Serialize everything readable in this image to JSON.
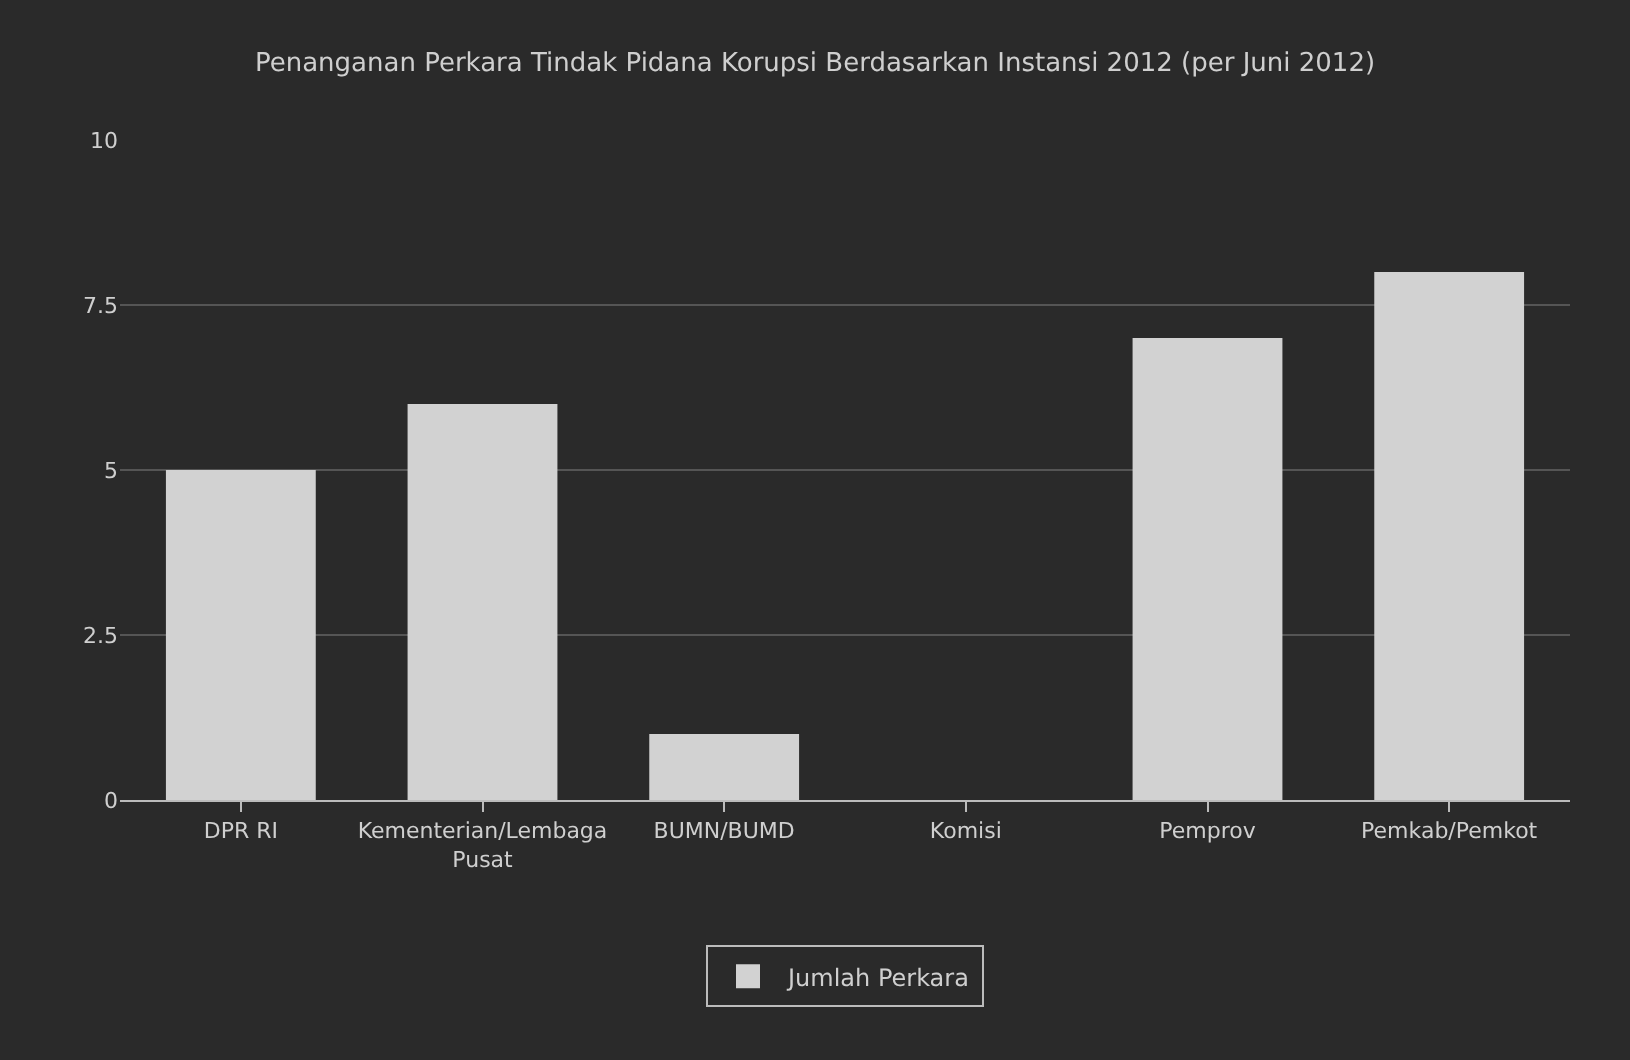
{
  "chart_data": {
    "type": "bar",
    "title": "Penanganan Perkara Tindak Pidana Korupsi Berdasarkan Instansi 2012 (per Juni 2012)",
    "categories": [
      "DPR RI",
      "Kementerian/Lembaga Pusat",
      "BUMN/BUMD",
      "Komisi",
      "Pemprov",
      "Pemkab/Pemkot"
    ],
    "series": [
      {
        "name": "Jumlah Perkara",
        "color": "#d2d2d2",
        "values": [
          5,
          6,
          1,
          0,
          7,
          8
        ]
      }
    ],
    "ylim": [
      0,
      10
    ],
    "yticks": [
      0,
      2.5,
      5,
      7.5,
      10
    ],
    "grid": "y",
    "legend": "bottom"
  }
}
